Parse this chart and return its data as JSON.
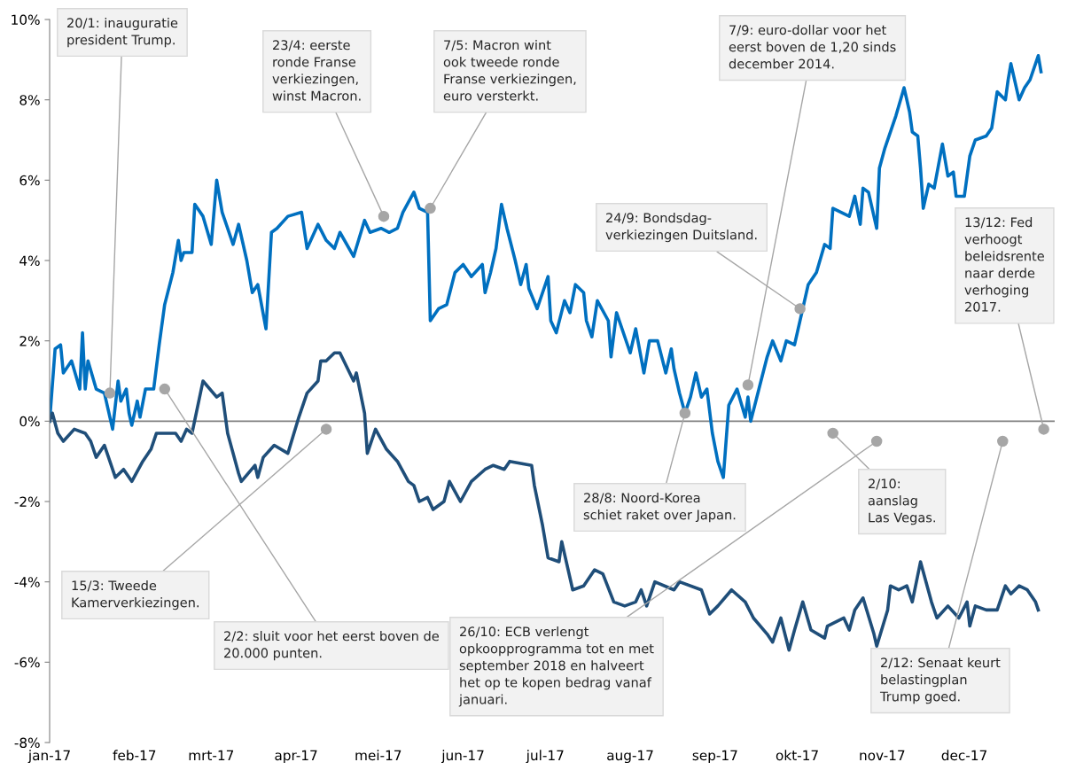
{
  "chart_data": {
    "type": "line",
    "xlim": [
      "2017-01-01",
      "2018-01-03"
    ],
    "xticks": [
      {
        "value": "2017-01-01",
        "label": "jan-17"
      },
      {
        "value": "2017-02-01",
        "label": "feb-17"
      },
      {
        "value": "2017-03-01",
        "label": "mrt-17"
      },
      {
        "value": "2017-04-01",
        "label": "apr-17"
      },
      {
        "value": "2017-05-01",
        "label": "mei-17"
      },
      {
        "value": "2017-06-01",
        "label": "jun-17"
      },
      {
        "value": "2017-07-01",
        "label": "jul-17"
      },
      {
        "value": "2017-08-01",
        "label": "aug-17"
      },
      {
        "value": "2017-09-01",
        "label": "sep-17"
      },
      {
        "value": "2017-10-01",
        "label": "okt-17"
      },
      {
        "value": "2017-11-01",
        "label": "nov-17"
      },
      {
        "value": "2017-12-01",
        "label": "dec-17"
      }
    ],
    "ylim": [
      -8,
      10
    ],
    "yticks": [
      {
        "value": -8,
        "label": "-8%"
      },
      {
        "value": -6,
        "label": "-6%"
      },
      {
        "value": -4,
        "label": "-4%"
      },
      {
        "value": -2,
        "label": "-2%"
      },
      {
        "value": 0,
        "label": "0%"
      },
      {
        "value": 2,
        "label": "2%"
      },
      {
        "value": 4,
        "label": "4%"
      },
      {
        "value": 6,
        "label": "6%"
      },
      {
        "value": 8,
        "label": "8%"
      },
      {
        "value": 10,
        "label": "10%"
      }
    ],
    "grid": false,
    "marker": "none",
    "line_style": "solid",
    "ref_lines": [
      {
        "axis": "y",
        "value": 0,
        "color": "#808080"
      }
    ],
    "series": [
      {
        "color": "#0070c0",
        "x": [
          "2017-01-01",
          "2017-01-03",
          "2017-01-05",
          "2017-01-06",
          "2017-01-09",
          "2017-01-12",
          "2017-01-13",
          "2017-01-14",
          "2017-01-15",
          "2017-01-18",
          "2017-01-21",
          "2017-01-24",
          "2017-01-26",
          "2017-01-27",
          "2017-01-29",
          "2017-01-30",
          "2017-01-31",
          "2017-02-02",
          "2017-02-03",
          "2017-02-05",
          "2017-02-08",
          "2017-02-10",
          "2017-02-12",
          "2017-02-15",
          "2017-02-17",
          "2017-02-18",
          "2017-02-19",
          "2017-02-22",
          "2017-02-23",
          "2017-02-26",
          "2017-03-01",
          "2017-03-03",
          "2017-03-05",
          "2017-03-09",
          "2017-03-11",
          "2017-03-14",
          "2017-03-16",
          "2017-03-18",
          "2017-03-21",
          "2017-03-23",
          "2017-03-25",
          "2017-03-29",
          "2017-04-03",
          "2017-04-05",
          "2017-04-09",
          "2017-04-12",
          "2017-04-15",
          "2017-04-17",
          "2017-04-22",
          "2017-04-26",
          "2017-04-28",
          "2017-05-02",
          "2017-05-05",
          "2017-05-08",
          "2017-05-10",
          "2017-05-14",
          "2017-05-16",
          "2017-05-19",
          "2017-05-20",
          "2017-05-23",
          "2017-05-26",
          "2017-05-29",
          "2017-06-01",
          "2017-06-04",
          "2017-06-08",
          "2017-06-09",
          "2017-06-11",
          "2017-06-13",
          "2017-06-15",
          "2017-06-17",
          "2017-06-20",
          "2017-06-22",
          "2017-06-24",
          "2017-06-25",
          "2017-06-28",
          "2017-06-30",
          "2017-07-02",
          "2017-07-03",
          "2017-07-05",
          "2017-07-08",
          "2017-07-10",
          "2017-07-12",
          "2017-07-15",
          "2017-07-16",
          "2017-07-18",
          "2017-07-20",
          "2017-07-24",
          "2017-07-25",
          "2017-07-27",
          "2017-08-01",
          "2017-08-03",
          "2017-08-06",
          "2017-08-08",
          "2017-08-11",
          "2017-08-14",
          "2017-08-16",
          "2017-08-17",
          "2017-08-19",
          "2017-08-21",
          "2017-08-23",
          "2017-08-25",
          "2017-08-27",
          "2017-08-29",
          "2017-08-31",
          "2017-09-02",
          "2017-09-04",
          "2017-09-06",
          "2017-09-09",
          "2017-09-12",
          "2017-09-13",
          "2017-09-14",
          "2017-09-17",
          "2017-09-20",
          "2017-09-22",
          "2017-09-25",
          "2017-09-27",
          "2017-09-30",
          "2017-10-03",
          "2017-10-05",
          "2017-10-08",
          "2017-10-11",
          "2017-10-13",
          "2017-10-14",
          "2017-10-17",
          "2017-10-20",
          "2017-10-22",
          "2017-10-24",
          "2017-10-25",
          "2017-10-27",
          "2017-10-30",
          "2017-10-31",
          "2017-11-02",
          "2017-11-06",
          "2017-11-09",
          "2017-11-11",
          "2017-11-12",
          "2017-11-14",
          "2017-11-15",
          "2017-11-16",
          "2017-11-18",
          "2017-11-20",
          "2017-11-23",
          "2017-11-25",
          "2017-11-27",
          "2017-11-28",
          "2017-12-01",
          "2017-12-03",
          "2017-12-05",
          "2017-12-09",
          "2017-12-11",
          "2017-12-13",
          "2017-12-16",
          "2017-12-17",
          "2017-12-18",
          "2017-12-21",
          "2017-12-23",
          "2017-12-25",
          "2017-12-28",
          "2017-12-29"
        ],
        "values": [
          0,
          1.8,
          1.9,
          1.2,
          1.5,
          0.8,
          2.2,
          0.8,
          1.5,
          0.8,
          0.7,
          -0.2,
          1.0,
          0.5,
          0.8,
          0.2,
          -0.1,
          0.5,
          0.1,
          0.8,
          0.8,
          1.9,
          2.9,
          3.7,
          4.5,
          4.0,
          4.2,
          4.2,
          5.4,
          5.1,
          4.4,
          6.0,
          5.2,
          4.4,
          4.9,
          4.0,
          3.2,
          3.4,
          2.3,
          4.7,
          4.8,
          5.1,
          5.2,
          4.3,
          4.9,
          4.5,
          4.3,
          4.7,
          4.1,
          5.0,
          4.7,
          4.8,
          4.7,
          4.8,
          5.2,
          5.7,
          5.3,
          5.2,
          2.5,
          2.8,
          2.9,
          3.7,
          3.9,
          3.6,
          3.9,
          3.2,
          3.7,
          4.3,
          5.4,
          4.8,
          4.0,
          3.4,
          3.9,
          3.3,
          2.8,
          3.2,
          3.6,
          2.5,
          2.2,
          3.0,
          2.7,
          3.4,
          3.2,
          2.5,
          2.1,
          3.0,
          2.5,
          1.6,
          2.7,
          1.7,
          2.3,
          1.2,
          2.0,
          2.0,
          1.2,
          1.8,
          1.3,
          0.7,
          0.2,
          0.6,
          1.2,
          0.6,
          0.8,
          -0.3,
          -1.0,
          -1.4,
          0.4,
          0.8,
          0.1,
          0.6,
          0.0,
          0.8,
          1.6,
          2.0,
          1.5,
          2.0,
          1.9,
          2.8,
          3.4,
          3.7,
          4.4,
          4.3,
          5.3,
          5.2,
          5.1,
          5.6,
          4.9,
          5.8,
          5.7,
          4.8,
          6.3,
          6.8,
          7.6,
          8.3,
          7.7,
          7.2,
          7.1,
          6.3,
          5.3,
          5.9,
          5.8,
          6.9,
          6.1,
          6.2,
          5.6,
          5.6,
          6.6,
          7.0,
          7.1,
          7.3,
          8.2,
          8.0,
          8.5,
          8.9,
          8.0,
          8.3,
          8.5,
          9.1,
          8.7
        ]
      },
      {
        "color": "#1f4e79",
        "x": [
          "2017-01-01",
          "2017-01-02",
          "2017-01-04",
          "2017-01-06",
          "2017-01-10",
          "2017-01-14",
          "2017-01-16",
          "2017-01-18",
          "2017-01-21",
          "2017-01-23",
          "2017-01-25",
          "2017-01-28",
          "2017-01-31",
          "2017-02-04",
          "2017-02-07",
          "2017-02-09",
          "2017-02-16",
          "2017-02-18",
          "2017-02-20",
          "2017-02-22",
          "2017-02-26",
          "2017-03-03",
          "2017-03-05",
          "2017-03-07",
          "2017-03-11",
          "2017-03-12",
          "2017-03-17",
          "2017-03-18",
          "2017-03-20",
          "2017-03-24",
          "2017-03-29",
          "2017-04-02",
          "2017-04-05",
          "2017-04-09",
          "2017-04-10",
          "2017-04-12",
          "2017-04-15",
          "2017-04-17",
          "2017-04-22",
          "2017-04-23",
          "2017-04-26",
          "2017-04-27",
          "2017-04-30",
          "2017-05-04",
          "2017-05-08",
          "2017-05-12",
          "2017-05-14",
          "2017-05-16",
          "2017-05-19",
          "2017-05-21",
          "2017-05-25",
          "2017-05-27",
          "2017-05-31",
          "2017-06-04",
          "2017-06-09",
          "2017-06-12",
          "2017-06-16",
          "2017-06-18",
          "2017-06-26",
          "2017-06-27",
          "2017-06-30",
          "2017-07-02",
          "2017-07-06",
          "2017-07-07",
          "2017-07-11",
          "2017-07-15",
          "2017-07-19",
          "2017-07-22",
          "2017-07-26",
          "2017-07-30",
          "2017-08-03",
          "2017-08-05",
          "2017-08-07",
          "2017-08-10",
          "2017-08-17",
          "2017-08-19",
          "2017-08-27",
          "2017-08-30",
          "2017-09-02",
          "2017-09-07",
          "2017-09-12",
          "2017-09-15",
          "2017-09-20",
          "2017-09-22",
          "2017-09-25",
          "2017-09-28",
          "2017-09-30",
          "2017-10-03",
          "2017-10-06",
          "2017-10-11",
          "2017-10-12",
          "2017-10-18",
          "2017-10-20",
          "2017-10-22",
          "2017-10-25",
          "2017-10-29",
          "2017-10-30",
          "2017-11-03",
          "2017-11-04",
          "2017-11-07",
          "2017-11-10",
          "2017-11-12",
          "2017-11-15",
          "2017-11-19",
          "2017-11-21",
          "2017-11-25",
          "2017-11-29",
          "2017-12-02",
          "2017-12-03",
          "2017-12-05",
          "2017-12-09",
          "2017-12-13",
          "2017-12-16",
          "2017-12-18",
          "2017-12-21",
          "2017-12-24",
          "2017-12-27",
          "2017-12-28"
        ],
        "values": [
          0,
          0.2,
          -0.3,
          -0.5,
          -0.2,
          -0.3,
          -0.5,
          -0.9,
          -0.6,
          -1.0,
          -1.4,
          -1.2,
          -1.5,
          -1.0,
          -0.7,
          -0.3,
          -0.3,
          -0.5,
          -0.2,
          -0.3,
          1.0,
          0.6,
          0.7,
          -0.3,
          -1.3,
          -1.5,
          -1.1,
          -1.4,
          -0.9,
          -0.6,
          -0.8,
          0.1,
          0.7,
          1.0,
          1.5,
          1.5,
          1.7,
          1.7,
          1.0,
          1.2,
          0.2,
          -0.8,
          -0.2,
          -0.7,
          -1.0,
          -1.5,
          -1.6,
          -2.0,
          -1.9,
          -2.2,
          -2.0,
          -1.5,
          -2.0,
          -1.5,
          -1.2,
          -1.1,
          -1.2,
          -1.0,
          -1.1,
          -1.6,
          -2.6,
          -3.4,
          -3.5,
          -3.0,
          -4.2,
          -4.1,
          -3.7,
          -3.8,
          -4.5,
          -4.6,
          -4.5,
          -4.2,
          -4.6,
          -4.0,
          -4.2,
          -4.0,
          -4.2,
          -4.8,
          -4.6,
          -4.2,
          -4.5,
          -4.9,
          -5.3,
          -5.5,
          -4.9,
          -5.7,
          -5.2,
          -4.5,
          -5.2,
          -5.4,
          -5.1,
          -4.9,
          -5.2,
          -4.7,
          -4.4,
          -5.3,
          -5.6,
          -4.7,
          -4.1,
          -4.2,
          -4.1,
          -4.5,
          -3.5,
          -4.5,
          -4.9,
          -4.6,
          -4.9,
          -4.5,
          -5.1,
          -4.6,
          -4.7,
          -4.7,
          -4.1,
          -4.3,
          -4.1,
          -4.2,
          -4.5,
          -4.7
        ]
      }
    ],
    "annotations": [
      {
        "text": "20/1: inauguratie\npresident Trump.",
        "x": "2017-01-23",
        "y": 0.7
      },
      {
        "text": "2/2: sluit voor het eerst boven de\n20.000 punten.",
        "x": "2017-02-12",
        "y": 0.8
      },
      {
        "text": "15/3: Tweede\nKamerverkiezingen.",
        "x": "2017-04-12",
        "y": -0.2
      },
      {
        "text": "23/4: eerste\nronde Franse\nverkiezingen,\nwinst Macron.",
        "x": "2017-05-03",
        "y": 5.1
      },
      {
        "text": "7/5: Macron wint\nook tweede ronde\nFranse verkiezingen,\neuro versterkt.",
        "x": "2017-05-20",
        "y": 5.3
      },
      {
        "text": "28/8: Noord-Korea\nschiet raket over Japan.",
        "x": "2017-08-21",
        "y": 0.2
      },
      {
        "text": "7/9: euro-dollar voor het\neerst boven de 1,20 sinds\ndecember 2014.",
        "x": "2017-09-13",
        "y": 0.9
      },
      {
        "text": "24/9: Bondsdag-\nverkiezingen Duitsland.",
        "x": "2017-10-02",
        "y": 2.8
      },
      {
        "text": "2/10:\naanslag\nLas Vegas.",
        "x": "2017-10-14",
        "y": -0.3
      },
      {
        "text": "26/10: ECB verlengt\nopkoopprogramma tot en met\nseptember 2018 en halveert\nhet op te kopen bedrag vanaf\njanuari.",
        "x": "2017-10-30",
        "y": -0.5
      },
      {
        "text": "2/12: Senaat keurt\nbelastingplan\nTrump goed.",
        "x": "2017-12-15",
        "y": -0.5
      },
      {
        "text": "13/12: Fed\nverhoogt\nbeleidsrente\nnaar derde\nverhoging\n2017.",
        "x": "2017-12-30",
        "y": -0.2
      }
    ]
  }
}
